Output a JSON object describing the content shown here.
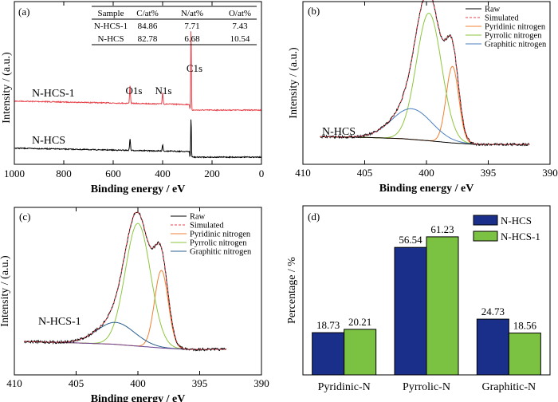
{
  "chart_data": [
    {
      "panel": "(a)",
      "type": "line",
      "xlabel": "Binding energy / eV",
      "ylabel": "Intensity / (a.u.)",
      "xlim": [
        1000,
        0
      ],
      "x_ticks": [
        "1000",
        "800",
        "600",
        "400",
        "200",
        "0"
      ],
      "series": [
        {
          "name": "N-HCS-1",
          "color": "#e8424a",
          "peaks": [
            {
              "label": "O1s",
              "x": 532,
              "height": 0.22
            },
            {
              "label": "N1s",
              "x": 400,
              "height": 0.14
            },
            {
              "label": "C1s",
              "x": 285,
              "height": 1.0
            }
          ]
        },
        {
          "name": "N-HCS",
          "color": "#000000",
          "peaks": [
            {
              "x": 532,
              "height": 0.3
            },
            {
              "x": 400,
              "height": 0.16
            },
            {
              "x": 285,
              "height": 1.0
            }
          ]
        }
      ],
      "table": {
        "headers": [
          "Sample",
          "C/at%",
          "N/at%",
          "O/at%"
        ],
        "rows": [
          [
            "N-HCS-1",
            "84.86",
            "7.71",
            "7.43"
          ],
          [
            "N-HCS",
            "82.78",
            "6.68",
            "10.54"
          ]
        ]
      }
    },
    {
      "panel": "(b)",
      "type": "line",
      "sample_label": "N-HCS",
      "xlabel": "Binding energy / eV",
      "ylabel": "Intensity / (a.u.)",
      "xlim": [
        410,
        390
      ],
      "x_ticks": [
        "410",
        "405",
        "400",
        "395",
        "390"
      ],
      "baseline_poly": [
        [
          408.5,
          0.06
        ],
        [
          405,
          0.055
        ],
        [
          402,
          0.045
        ],
        [
          400,
          0.03
        ],
        [
          398,
          0.012
        ],
        [
          396,
          0.0
        ],
        [
          392,
          0.0
        ]
      ],
      "components": [
        {
          "name": "Pyridinic nitrogen",
          "color": "#f08030",
          "center": 397.9,
          "height": 0.6,
          "fwhm": 1.2
        },
        {
          "name": "Pyrrolic nitrogen",
          "color": "#8dc63f",
          "center": 399.8,
          "height": 1.0,
          "fwhm": 2.4
        },
        {
          "name": "Graphitic nitrogen",
          "color": "#4a7fc1",
          "center": 401.2,
          "height": 0.24,
          "fwhm": 3.8
        }
      ],
      "legend": [
        "Raw",
        "Simulated",
        "Pyridinic nitrogen",
        "Pyrrolic nitrogen",
        "Graphitic nitrogen"
      ]
    },
    {
      "panel": "(c)",
      "type": "line",
      "sample_label": "N-HCS-1",
      "xlabel": "Binding energy / eV",
      "ylabel": "Intensity / (a.u.)",
      "xlim": [
        410,
        390
      ],
      "x_ticks": [
        "410",
        "405",
        "400",
        "395",
        "390"
      ],
      "baseline_poly": [
        [
          409,
          0.06
        ],
        [
          405,
          0.05
        ],
        [
          402,
          0.04
        ],
        [
          400,
          0.025
        ],
        [
          398,
          0.01
        ],
        [
          396,
          0.0
        ],
        [
          392,
          0.0
        ]
      ],
      "components": [
        {
          "name": "Pyridinic nitrogen",
          "color": "#f08030",
          "center": 398.1,
          "height": 0.6,
          "fwhm": 1.3
        },
        {
          "name": "Pyrrolic nitrogen",
          "color": "#8dc63f",
          "center": 400.0,
          "height": 0.95,
          "fwhm": 2.4
        },
        {
          "name": "Graphitic nitrogen",
          "color": "#2a5f8e",
          "center": 401.8,
          "height": 0.17,
          "fwhm": 3.6
        }
      ],
      "legend": [
        "Raw",
        "Simulated",
        "Pyridinic nitrogen",
        "Pyrrolic nitrogen",
        "Graphitic nitrogen"
      ]
    },
    {
      "panel": "(d)",
      "type": "bar",
      "ylabel": "Percentage / %",
      "ylim": [
        0,
        75
      ],
      "categories": [
        "Pyridinic-N",
        "Pyrrolic-N",
        "Graphitic-N"
      ],
      "series": [
        {
          "name": "N-HCS",
          "color": "#1a2f8a",
          "values": [
            18.73,
            56.54,
            24.73
          ],
          "labels": [
            "18.73",
            "56.54",
            "24.73"
          ]
        },
        {
          "name": "N-HCS-1",
          "color": "#7cc242",
          "values": [
            20.21,
            61.23,
            18.56
          ],
          "labels": [
            "20.21",
            "61.23",
            "18.56"
          ]
        }
      ]
    }
  ],
  "colors": {
    "raw": "#000000",
    "simulated": "#e8424a"
  }
}
